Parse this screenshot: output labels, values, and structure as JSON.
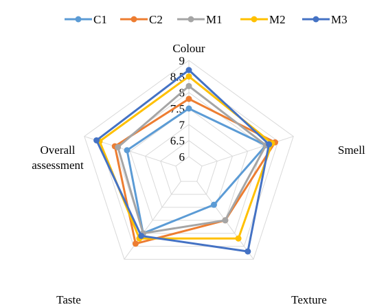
{
  "chart_data": {
    "type": "radar",
    "axes": [
      "Colour",
      "Smell",
      "Texture",
      "Taste",
      "Overall assessment"
    ],
    "axis_label_lines": [
      [
        "Colour"
      ],
      [
        "Smell"
      ],
      [
        "Texture"
      ],
      [
        "Taste"
      ],
      [
        "Overall",
        "assessment"
      ]
    ],
    "scale": {
      "min": 6,
      "max": 9,
      "step": 0.5,
      "tick_labels": [
        "6",
        "6.5",
        "7",
        "7.5",
        "8",
        "8.5",
        "9"
      ]
    },
    "legend_position": "top",
    "grid": true,
    "series": [
      {
        "name": "C1",
        "color": "#5B9BD5",
        "values": [
          7.5,
          8.1,
          6.9,
          8.0,
          7.6
        ]
      },
      {
        "name": "C2",
        "color": "#ED7D31",
        "values": [
          7.8,
          8.4,
          7.5,
          8.4,
          8.0
        ]
      },
      {
        "name": "M1",
        "color": "#A5A5A5",
        "values": [
          8.2,
          8.1,
          7.5,
          8.0,
          7.9
        ]
      },
      {
        "name": "M2",
        "color": "#FFC000",
        "values": [
          8.5,
          8.3,
          8.2,
          8.2,
          8.5
        ]
      },
      {
        "name": "M3",
        "color": "#4472C4",
        "values": [
          8.7,
          8.2,
          8.7,
          8.1,
          8.6
        ]
      }
    ]
  }
}
